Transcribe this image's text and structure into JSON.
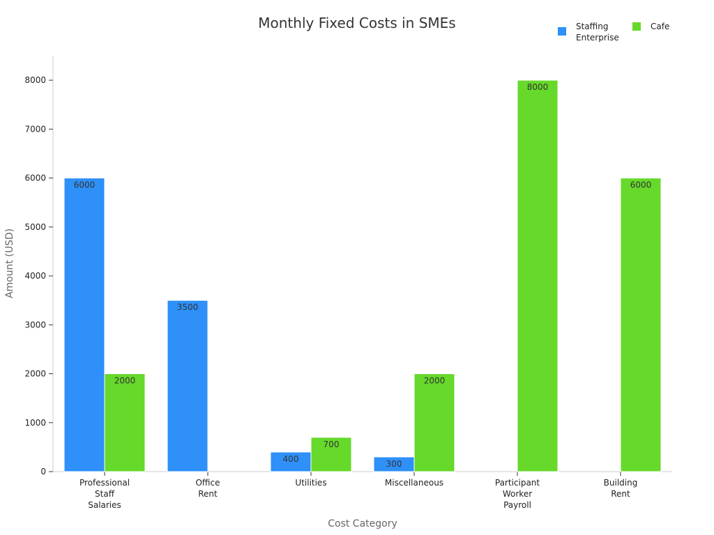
{
  "chart_data": {
    "type": "bar",
    "title": "Monthly Fixed Costs in SMEs",
    "xlabel": "Cost Category",
    "ylabel": "Amount (USD)",
    "ylim": [
      0,
      8500
    ],
    "yticks": [
      0,
      1000,
      2000,
      3000,
      4000,
      5000,
      6000,
      7000,
      8000
    ],
    "grid": false,
    "legend_position": "top-right",
    "categories": [
      [
        "Professional",
        "Staff",
        "Salaries"
      ],
      [
        "Office",
        "Rent"
      ],
      [
        "Utilities"
      ],
      [
        "Miscellaneous"
      ],
      [
        "Participant",
        "Worker",
        "Payroll"
      ],
      [
        "Building",
        "Rent"
      ]
    ],
    "series": [
      {
        "name": "Staffing Enterprise",
        "legend_lines": [
          "Staffing",
          "Enterprise"
        ],
        "color": "#2e90f8",
        "values": [
          6000,
          3500,
          400,
          300,
          null,
          null
        ]
      },
      {
        "name": "Cafe",
        "legend_lines": [
          "Cafe"
        ],
        "color": "#66d92a",
        "values": [
          2000,
          null,
          700,
          2000,
          8000,
          6000
        ]
      }
    ]
  }
}
